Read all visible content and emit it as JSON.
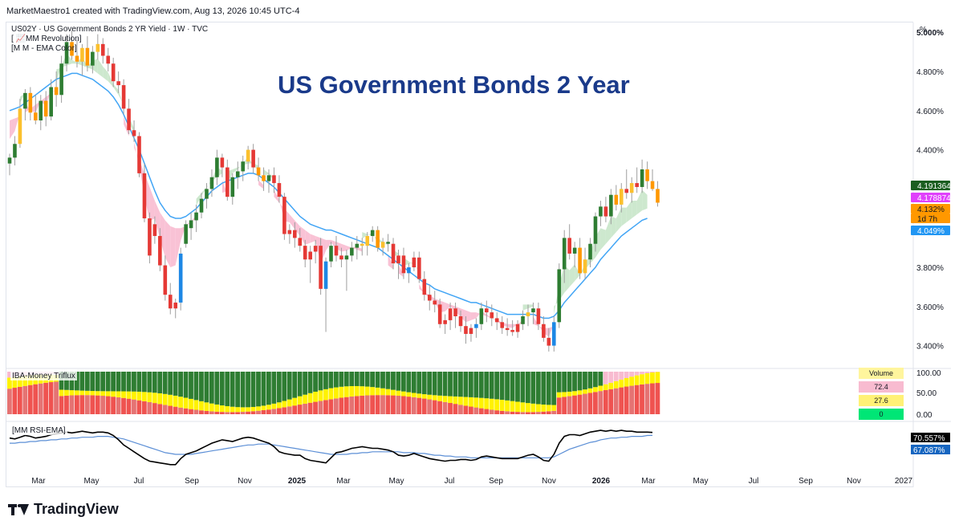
{
  "header": {
    "text": "MarketMaestro1 created with TradingView.com, Aug 13, 2026 10:45 UTC-4"
  },
  "legend": {
    "symbol": "US02Y · US Government Bonds 2 YR Yield · 1W · TVC",
    "line2": "[ 📈MM Revolution]",
    "line3": "[M M - EMA Color]"
  },
  "big_title": "US Government Bonds 2 Year",
  "unit_label": "%",
  "price_labels": [
    {
      "text": "4.191364",
      "bg": "#1b5e20",
      "fg": "#ffffff"
    },
    {
      "text": "4.178874",
      "bg": "#e040fb",
      "fg": "#ffffff"
    },
    {
      "text": "4.132%",
      "bg": "#ff9800",
      "fg": "#131722"
    },
    {
      "text": "1d 7h",
      "bg": "#ff9800",
      "fg": "#131722"
    },
    {
      "text": "4.049%",
      "bg": "#2196f3",
      "fg": "#ffffff"
    }
  ],
  "trifl": {
    "title": "IBA-Money Triflux",
    "axis": [
      "100.00",
      "50.00",
      "0.00"
    ],
    "table": [
      {
        "text": "Volume",
        "bg": "#fff59d"
      },
      {
        "text": "72.4",
        "bg": "#f8bbd0"
      },
      {
        "text": "27.6",
        "bg": "#fff176"
      },
      {
        "text": "0",
        "bg": "#00e676"
      }
    ]
  },
  "rsi": {
    "title": "[MM RSI-EMA]",
    "labels": [
      {
        "text": "70.557%",
        "bg": "#000000",
        "fg": "#ffffff"
      },
      {
        "text": "67.087%",
        "bg": "#1565c0",
        "fg": "#ffffff"
      }
    ]
  },
  "footer": {
    "brand": "TradingView"
  },
  "colors": {
    "up": "#2e7d32",
    "down": "#e53935",
    "strong_up": "#1e88e5",
    "warn_up": "#fbc02d",
    "warn_down": "#ff9800",
    "ema": "#42a5f5",
    "ribbon_up": "#c8e6c9",
    "ribbon_down": "#f8bbd0"
  },
  "chart_data": {
    "type": "candlestick",
    "title": "US Government Bonds 2 Year",
    "ylabel": "%",
    "ylim": [
      3.3,
      5.05
    ],
    "yticks": [
      5.0,
      4.8,
      4.6,
      4.4,
      3.8,
      3.6,
      3.4
    ],
    "ytick_labels": [
      "5.000%",
      "4.800%",
      "4.600%",
      "4.400%",
      "3.800%",
      "3.600%",
      "3.400%"
    ],
    "x_labels": [
      "Mar",
      "May",
      "Jul",
      "Sep",
      "Nov",
      "2025",
      "Mar",
      "May",
      "Jul",
      "Sep",
      "Nov",
      "2026",
      "Mar",
      "May",
      "Jul",
      "Sep",
      "Nov",
      "2027"
    ],
    "x_bold_labels": [
      "2025",
      "2026"
    ],
    "last_close": 4.132,
    "candles": [
      [
        4.33,
        4.38,
        4.27,
        4.36,
        "up"
      ],
      [
        4.36,
        4.47,
        4.32,
        4.43,
        "up"
      ],
      [
        4.43,
        4.66,
        4.41,
        4.61,
        "warn_up"
      ],
      [
        4.61,
        4.71,
        4.55,
        4.69,
        "up"
      ],
      [
        4.69,
        4.72,
        4.55,
        4.59,
        "warn_down"
      ],
      [
        4.59,
        4.68,
        4.53,
        4.55,
        "warn_down"
      ],
      [
        4.55,
        4.68,
        4.5,
        4.65,
        "up"
      ],
      [
        4.65,
        4.7,
        4.52,
        4.57,
        "warn_down"
      ],
      [
        4.57,
        4.76,
        4.55,
        4.72,
        "up"
      ],
      [
        4.72,
        4.8,
        4.62,
        4.68,
        "warn_down"
      ],
      [
        4.68,
        4.88,
        4.64,
        4.84,
        "up"
      ],
      [
        4.84,
        4.99,
        4.8,
        4.95,
        "up"
      ],
      [
        4.95,
        5.01,
        4.86,
        4.88,
        "warn_down"
      ],
      [
        4.88,
        4.96,
        4.82,
        4.85,
        "warn_down"
      ],
      [
        4.85,
        4.94,
        4.78,
        4.92,
        "warn_up"
      ],
      [
        4.92,
        4.98,
        4.8,
        4.83,
        "warn_down"
      ],
      [
        4.83,
        4.93,
        4.79,
        4.9,
        "up"
      ],
      [
        4.9,
        4.99,
        4.86,
        4.94,
        "warn_up"
      ],
      [
        4.94,
        4.97,
        4.84,
        4.88,
        "down"
      ],
      [
        4.88,
        4.92,
        4.8,
        4.84,
        "down"
      ],
      [
        4.84,
        4.87,
        4.72,
        4.75,
        "down"
      ],
      [
        4.75,
        4.8,
        4.69,
        4.73,
        "down"
      ],
      [
        4.73,
        4.76,
        4.58,
        4.61,
        "down"
      ],
      [
        4.61,
        4.66,
        4.48,
        4.5,
        "down"
      ],
      [
        4.5,
        4.55,
        4.44,
        4.47,
        "down"
      ],
      [
        4.47,
        4.49,
        4.26,
        4.28,
        "down"
      ],
      [
        4.28,
        4.33,
        4.03,
        4.05,
        "down"
      ],
      [
        4.05,
        4.08,
        3.82,
        3.86,
        "down"
      ],
      [
        4.02,
        4.06,
        3.92,
        3.96,
        "down"
      ],
      [
        3.96,
        4.0,
        3.78,
        3.81,
        "down"
      ],
      [
        3.81,
        3.86,
        3.63,
        3.66,
        "down"
      ],
      [
        3.66,
        3.72,
        3.56,
        3.59,
        "down"
      ],
      [
        3.59,
        3.64,
        3.54,
        3.62,
        "down"
      ],
      [
        3.62,
        3.9,
        3.58,
        3.87,
        "strong_up"
      ],
      [
        3.92,
        4.04,
        3.9,
        4.02,
        "up"
      ],
      [
        4.0,
        4.08,
        3.94,
        4.04,
        "up"
      ],
      [
        4.04,
        4.12,
        3.98,
        4.08,
        "up"
      ],
      [
        4.08,
        4.18,
        4.05,
        4.15,
        "up"
      ],
      [
        4.15,
        4.23,
        4.1,
        4.2,
        "up"
      ],
      [
        4.2,
        4.3,
        4.16,
        4.26,
        "up"
      ],
      [
        4.26,
        4.4,
        4.22,
        4.36,
        "up"
      ],
      [
        4.36,
        4.38,
        4.26,
        4.31,
        "down"
      ],
      [
        4.31,
        4.35,
        4.14,
        4.16,
        "down"
      ],
      [
        4.16,
        4.28,
        4.12,
        4.26,
        "up"
      ],
      [
        4.26,
        4.34,
        4.2,
        4.29,
        "up"
      ],
      [
        4.29,
        4.37,
        4.24,
        4.34,
        "up"
      ],
      [
        4.34,
        4.42,
        4.3,
        4.4,
        "warn_up"
      ],
      [
        4.4,
        4.43,
        4.28,
        4.31,
        "down"
      ],
      [
        4.31,
        4.36,
        4.24,
        4.27,
        "warn_down"
      ],
      [
        4.27,
        4.31,
        4.19,
        4.24,
        "warn_down"
      ],
      [
        4.24,
        4.3,
        4.18,
        4.27,
        "up"
      ],
      [
        4.27,
        4.31,
        4.18,
        4.23,
        "down"
      ],
      [
        4.23,
        4.27,
        4.13,
        4.16,
        "down"
      ],
      [
        4.16,
        4.18,
        3.94,
        3.97,
        "down"
      ],
      [
        3.97,
        4.02,
        3.92,
        3.99,
        "down"
      ],
      [
        3.99,
        4.03,
        3.9,
        3.95,
        "down"
      ],
      [
        3.95,
        4.0,
        3.88,
        3.91,
        "down"
      ],
      [
        3.91,
        3.94,
        3.8,
        3.84,
        "down"
      ],
      [
        3.84,
        3.91,
        3.72,
        3.88,
        "down"
      ],
      [
        3.88,
        3.94,
        3.82,
        3.91,
        "down"
      ],
      [
        3.91,
        3.95,
        3.66,
        3.69,
        "down"
      ],
      [
        3.69,
        3.85,
        3.47,
        3.83,
        "strong_up"
      ],
      [
        3.83,
        3.93,
        3.8,
        3.91,
        "up"
      ],
      [
        3.91,
        3.96,
        3.83,
        3.86,
        "down"
      ],
      [
        3.86,
        3.9,
        3.8,
        3.84,
        "down"
      ],
      [
        3.84,
        3.89,
        3.68,
        3.86,
        "up"
      ],
      [
        3.86,
        3.93,
        3.83,
        3.9,
        "up"
      ],
      [
        3.9,
        3.96,
        3.84,
        3.92,
        "up"
      ],
      [
        3.92,
        3.95,
        3.86,
        3.91,
        "warn_up"
      ],
      [
        3.91,
        3.98,
        3.86,
        3.96,
        "warn_up"
      ],
      [
        3.96,
        4.01,
        3.93,
        3.99,
        "up"
      ],
      [
        3.99,
        4.01,
        3.88,
        3.9,
        "warn_down"
      ],
      [
        3.9,
        3.95,
        3.86,
        3.93,
        "warn_up"
      ],
      [
        3.93,
        3.97,
        3.88,
        3.92,
        "up"
      ],
      [
        3.92,
        3.95,
        3.79,
        3.82,
        "down"
      ],
      [
        3.82,
        3.89,
        3.74,
        3.86,
        "down"
      ],
      [
        3.86,
        3.9,
        3.74,
        3.77,
        "down"
      ],
      [
        3.77,
        3.82,
        3.72,
        3.8,
        "strong_up"
      ],
      [
        3.8,
        3.88,
        3.78,
        3.85,
        "down"
      ],
      [
        3.85,
        3.88,
        3.72,
        3.74,
        "down"
      ],
      [
        3.74,
        3.78,
        3.63,
        3.66,
        "down"
      ],
      [
        3.66,
        3.71,
        3.58,
        3.63,
        "down"
      ],
      [
        3.63,
        3.68,
        3.57,
        3.61,
        "down"
      ],
      [
        3.61,
        3.64,
        3.49,
        3.51,
        "down"
      ],
      [
        3.51,
        3.56,
        3.46,
        3.53,
        "down"
      ],
      [
        3.53,
        3.62,
        3.48,
        3.59,
        "down"
      ],
      [
        3.59,
        3.62,
        3.49,
        3.55,
        "down"
      ],
      [
        3.55,
        3.58,
        3.47,
        3.5,
        "down"
      ],
      [
        3.5,
        3.55,
        3.41,
        3.46,
        "down"
      ],
      [
        3.46,
        3.51,
        3.42,
        3.49,
        "down"
      ],
      [
        3.49,
        3.54,
        3.44,
        3.51,
        "strong_up"
      ],
      [
        3.51,
        3.62,
        3.48,
        3.59,
        "up"
      ],
      [
        3.59,
        3.63,
        3.52,
        3.57,
        "down"
      ],
      [
        3.57,
        3.61,
        3.5,
        3.54,
        "down"
      ],
      [
        3.54,
        3.57,
        3.48,
        3.52,
        "down"
      ],
      [
        3.52,
        3.55,
        3.46,
        3.49,
        "down"
      ],
      [
        3.49,
        3.54,
        3.45,
        3.48,
        "down"
      ],
      [
        3.48,
        3.53,
        3.45,
        3.47,
        "down"
      ],
      [
        3.47,
        3.53,
        3.44,
        3.51,
        "down"
      ],
      [
        3.51,
        3.58,
        3.48,
        3.55,
        "up"
      ],
      [
        3.55,
        3.61,
        3.5,
        3.57,
        "warn_up"
      ],
      [
        3.57,
        3.62,
        3.51,
        3.59,
        "up"
      ],
      [
        3.59,
        3.62,
        3.48,
        3.51,
        "down"
      ],
      [
        3.51,
        3.55,
        3.42,
        3.44,
        "down"
      ],
      [
        3.44,
        3.49,
        3.37,
        3.4,
        "down"
      ],
      [
        3.4,
        3.55,
        3.37,
        3.52,
        "strong_up"
      ],
      [
        3.52,
        3.82,
        3.49,
        3.79,
        "up"
      ],
      [
        3.79,
        3.99,
        3.72,
        3.95,
        "up"
      ],
      [
        3.95,
        4.02,
        3.84,
        3.87,
        "down"
      ],
      [
        3.87,
        3.93,
        3.8,
        3.9,
        "up"
      ],
      [
        3.9,
        3.95,
        3.74,
        3.77,
        "warn_down"
      ],
      [
        3.77,
        3.9,
        3.74,
        3.84,
        "warn_up"
      ],
      [
        3.84,
        3.95,
        3.8,
        3.92,
        "up"
      ],
      [
        3.92,
        4.08,
        3.88,
        4.06,
        "up"
      ],
      [
        4.06,
        4.14,
        4.01,
        4.11,
        "up"
      ],
      [
        4.11,
        4.16,
        4.03,
        4.06,
        "down"
      ],
      [
        4.06,
        4.2,
        4.02,
        4.17,
        "up"
      ],
      [
        4.17,
        4.22,
        4.09,
        4.12,
        "warn_down"
      ],
      [
        4.12,
        4.23,
        4.08,
        4.2,
        "warn_up"
      ],
      [
        4.2,
        4.3,
        4.15,
        4.18,
        "down"
      ],
      [
        4.18,
        4.26,
        4.13,
        4.23,
        "warn_up"
      ],
      [
        4.23,
        4.31,
        4.18,
        4.21,
        "down"
      ],
      [
        4.21,
        4.35,
        4.18,
        4.3,
        "up"
      ],
      [
        4.3,
        4.34,
        4.2,
        4.24,
        "warn_down"
      ],
      [
        4.24,
        4.3,
        4.19,
        4.2,
        "warn_down"
      ],
      [
        4.2,
        4.24,
        4.11,
        4.13,
        "warn_down"
      ]
    ],
    "ema": [
      4.6,
      4.61,
      4.62,
      4.64,
      4.66,
      4.68,
      4.7,
      4.72,
      4.74,
      4.76,
      4.77,
      4.78,
      4.79,
      4.79,
      4.78,
      4.77,
      4.76,
      4.74,
      4.72,
      4.7,
      4.67,
      4.63,
      4.58,
      4.52,
      4.46,
      4.4,
      4.33,
      4.26,
      4.19,
      4.13,
      4.09,
      4.06,
      4.05,
      4.05,
      4.06,
      4.08,
      4.1,
      4.13,
      4.16,
      4.19,
      4.21,
      4.23,
      4.24,
      4.25,
      4.26,
      4.27,
      4.28,
      4.28,
      4.27,
      4.25,
      4.23,
      4.21,
      4.18,
      4.15,
      4.12,
      4.09,
      4.06,
      4.04,
      4.02,
      4.01,
      4.0,
      3.99,
      3.99,
      3.98,
      3.97,
      3.96,
      3.95,
      3.94,
      3.93,
      3.92,
      3.91,
      3.9,
      3.88,
      3.86,
      3.84,
      3.82,
      3.8,
      3.78,
      3.76,
      3.74,
      3.72,
      3.71,
      3.69,
      3.68,
      3.67,
      3.66,
      3.65,
      3.64,
      3.63,
      3.62,
      3.62,
      3.61,
      3.6,
      3.59,
      3.58,
      3.57,
      3.56,
      3.56,
      3.56,
      3.56,
      3.56,
      3.56,
      3.55,
      3.54,
      3.54,
      3.55,
      3.58,
      3.62,
      3.65,
      3.68,
      3.71,
      3.74,
      3.77,
      3.8,
      3.84,
      3.87,
      3.9,
      3.93,
      3.96,
      3.98,
      4.0,
      4.02,
      4.04,
      4.05
    ],
    "trifl": {
      "series": [
        {
          "name": "Volume",
          "values": [
            72.4
          ]
        }
      ]
    },
    "rsi": {
      "rsi": [
        64,
        63,
        65,
        67,
        66,
        64,
        65,
        66,
        68,
        69,
        70,
        71,
        70,
        71,
        72,
        71,
        70,
        71,
        71,
        70,
        67,
        62,
        56,
        52,
        48,
        44,
        40,
        37,
        36,
        35,
        34,
        33,
        33,
        40,
        45,
        47,
        49,
        52,
        55,
        58,
        60,
        62,
        61,
        60,
        62,
        64,
        65,
        64,
        62,
        60,
        58,
        54,
        48,
        46,
        45,
        44,
        44,
        40,
        38,
        37,
        36,
        35,
        41,
        47,
        48,
        50,
        52,
        53,
        54,
        53,
        52,
        52,
        51,
        50,
        48,
        44,
        43,
        44,
        46,
        44,
        42,
        40,
        39,
        38,
        37,
        38,
        38,
        39,
        39,
        38,
        39,
        42,
        43,
        42,
        41,
        40,
        40,
        40,
        40,
        42,
        44,
        45,
        42,
        38,
        37,
        45,
        58,
        66,
        68,
        68,
        67,
        69,
        71,
        72,
        73,
        72,
        73,
        72,
        73,
        72,
        72,
        71,
        71,
        71,
        70.557
      ],
      "ema": [
        58,
        58,
        59,
        59,
        60,
        60,
        61,
        61,
        62,
        62,
        63,
        63,
        64,
        64,
        65,
        65,
        65,
        66,
        66,
        66,
        65,
        64,
        63,
        61,
        59,
        57,
        55,
        53,
        51,
        49,
        47,
        46,
        45,
        45,
        45,
        45,
        46,
        47,
        48,
        49,
        50,
        51,
        52,
        53,
        54,
        55,
        56,
        56,
        57,
        57,
        57,
        56,
        55,
        54,
        53,
        52,
        51,
        50,
        49,
        48,
        47,
        46,
        45,
        45,
        45,
        45,
        46,
        46,
        47,
        47,
        48,
        48,
        48,
        48,
        48,
        48,
        47,
        47,
        47,
        46,
        46,
        45,
        44,
        44,
        43,
        43,
        42,
        42,
        42,
        41,
        41,
        41,
        41,
        41,
        41,
        41,
        41,
        41,
        41,
        41,
        41,
        41,
        41,
        41,
        41,
        42,
        45,
        48,
        51,
        53,
        55,
        57,
        59,
        60,
        62,
        63,
        64,
        64,
        65,
        65,
        66,
        66,
        66,
        67,
        67.087
      ]
    }
  }
}
